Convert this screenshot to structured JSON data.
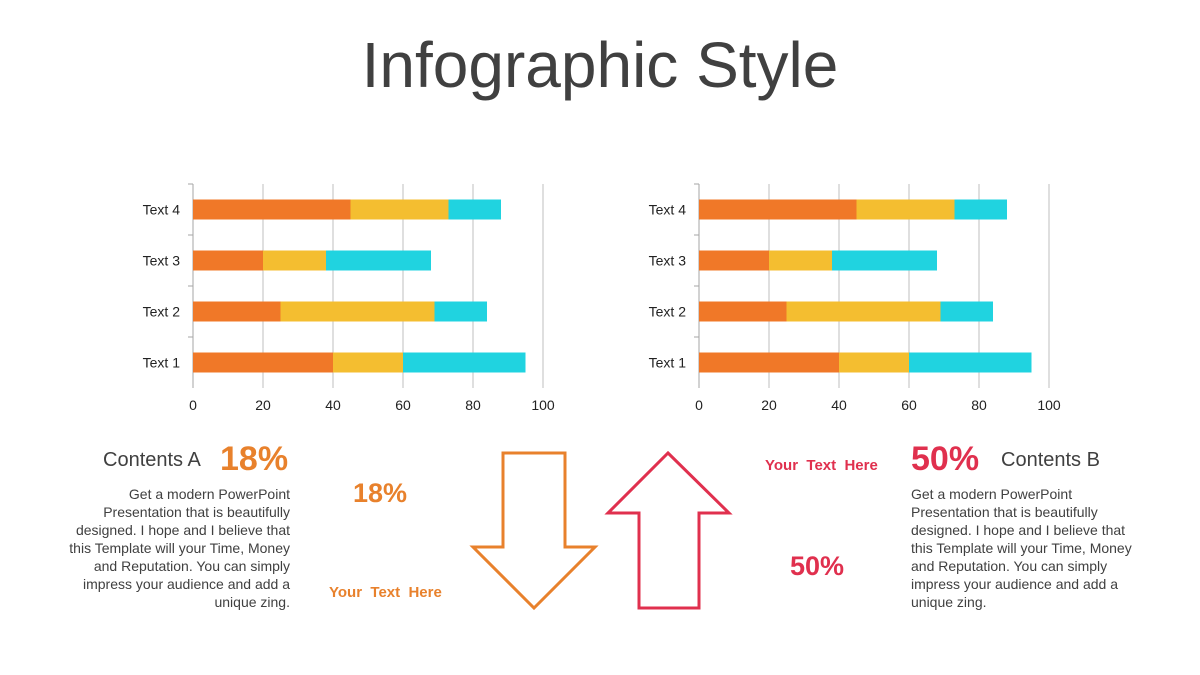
{
  "page": {
    "title": "Infographic Style"
  },
  "colors": {
    "orange": "#F07828",
    "yellow": "#F4BE30",
    "cyan": "#20D3E0",
    "accent_a": "#E8812C",
    "accent_b": "#E0304E",
    "arrow_a": "#E8812C",
    "arrow_b": "#E0304E"
  },
  "chart_data": [
    {
      "type": "bar",
      "orientation": "horizontal",
      "stacked": true,
      "categories": [
        "Text 1",
        "Text 2",
        "Text 3",
        "Text 4"
      ],
      "series": [
        {
          "values": [
            40,
            25,
            20,
            45
          ]
        },
        {
          "values": [
            20,
            44,
            18,
            28
          ]
        },
        {
          "values": [
            35,
            15,
            30,
            15
          ]
        }
      ],
      "xlim": [
        0,
        100
      ],
      "xticks": [
        "0",
        "20",
        "40",
        "60",
        "80",
        "100"
      ],
      "grid": true
    },
    {
      "type": "bar",
      "orientation": "horizontal",
      "stacked": true,
      "categories": [
        "Text 1",
        "Text 2",
        "Text 3",
        "Text 4"
      ],
      "series": [
        {
          "values": [
            40,
            25,
            20,
            45
          ]
        },
        {
          "values": [
            20,
            44,
            18,
            28
          ]
        },
        {
          "values": [
            35,
            15,
            30,
            15
          ]
        }
      ],
      "xlim": [
        0,
        100
      ],
      "xticks": [
        "0",
        "20",
        "40",
        "60",
        "80",
        "100"
      ],
      "grid": true
    }
  ],
  "left": {
    "heading": "Contents A",
    "percent": "18%",
    "body": "Get a modern PowerPoint Presentation that is beautifully designed. I hope and I believe that this Template will your Time, Money and Reputation. You can simply impress your audience and add a unique zing.",
    "arrow_percent": "18%",
    "arrow_caption": "Your  Text  Here"
  },
  "right": {
    "heading": "Contents B",
    "percent": "50%",
    "body": "Get a modern PowerPoint Presentation that is beautifully designed. I hope and I believe that this Template will your Time, Money and Reputation. You can simply impress your audience and add a unique zing.",
    "arrow_percent": "50%",
    "arrow_caption": "Your  Text  Here"
  }
}
